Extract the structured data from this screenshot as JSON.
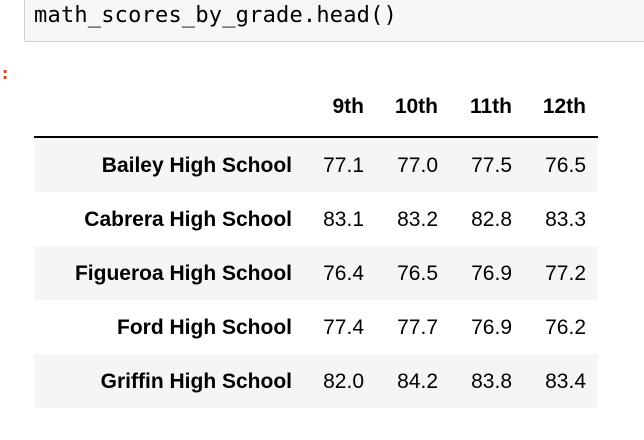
{
  "input_cell": {
    "code": "math_scores_by_grade.head()"
  },
  "output_cell": {
    "prompt": ":"
  },
  "table": {
    "columns": [
      "9th",
      "10th",
      "11th",
      "12th"
    ],
    "rows": [
      {
        "label": "Bailey High School",
        "values": [
          "77.1",
          "77.0",
          "77.5",
          "76.5"
        ]
      },
      {
        "label": "Cabrera High School",
        "values": [
          "83.1",
          "83.2",
          "82.8",
          "83.3"
        ]
      },
      {
        "label": "Figueroa High School",
        "values": [
          "76.4",
          "76.5",
          "76.9",
          "77.2"
        ]
      },
      {
        "label": "Ford High School",
        "values": [
          "77.4",
          "77.7",
          "76.9",
          "76.2"
        ]
      },
      {
        "label": "Griffin High School",
        "values": [
          "82.0",
          "84.2",
          "83.8",
          "83.4"
        ]
      }
    ]
  }
}
